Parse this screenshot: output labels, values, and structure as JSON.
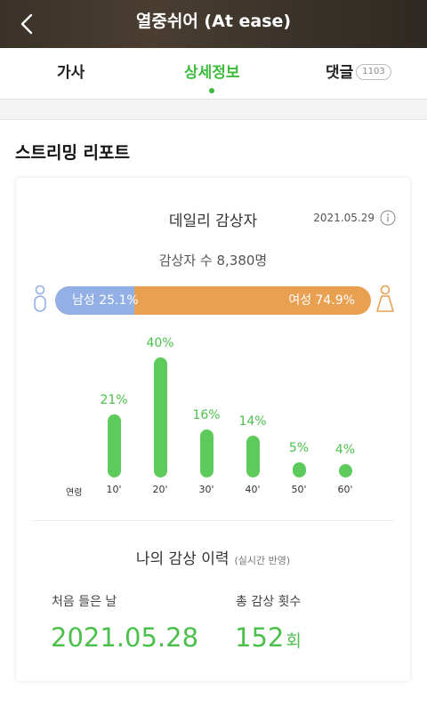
{
  "header": {
    "title": "열중쉬어 (At ease)",
    "back_icon": "chevron-left-icon"
  },
  "tabs": [
    {
      "label": "가사",
      "active": false
    },
    {
      "label": "상세정보",
      "active": true
    },
    {
      "label": "댓글",
      "badge": "1103",
      "active": false
    }
  ],
  "section": {
    "title": "스트리밍 리포트"
  },
  "daily": {
    "title": "데일리 감상자",
    "date": "2021.05.29",
    "info_icon": "info-icon",
    "listeners_text": "감상자 수 8,380명",
    "male_label": "남성 25.1%",
    "female_label": "여성 74.9%",
    "male_ratio": 0.251,
    "female_ratio": 0.749,
    "male_icon": "male-icon",
    "female_icon": "female-icon",
    "colors": {
      "male": "#93b0e6",
      "female": "#e9a050",
      "bars": "#5ccb5c",
      "accent": "#3dbb3d"
    }
  },
  "chart_data": {
    "type": "bar",
    "xlabel": "연령",
    "categories": [
      "10'",
      "20'",
      "30'",
      "40'",
      "50'",
      "60'"
    ],
    "values": [
      21,
      40,
      16,
      14,
      5,
      4
    ],
    "value_labels": [
      "21%",
      "40%",
      "16%",
      "14%",
      "5%",
      "4%"
    ],
    "ylabel": "",
    "ylim": [
      0,
      40
    ],
    "grid": false
  },
  "history": {
    "title": "나의 감상 이력",
    "subtitle": "(실시간 반영)",
    "first_listen_label": "처음 들은 날",
    "first_listen_value": "2021.05.28",
    "total_label": "총 감상 횟수",
    "total_value": "152",
    "total_unit": "회"
  }
}
